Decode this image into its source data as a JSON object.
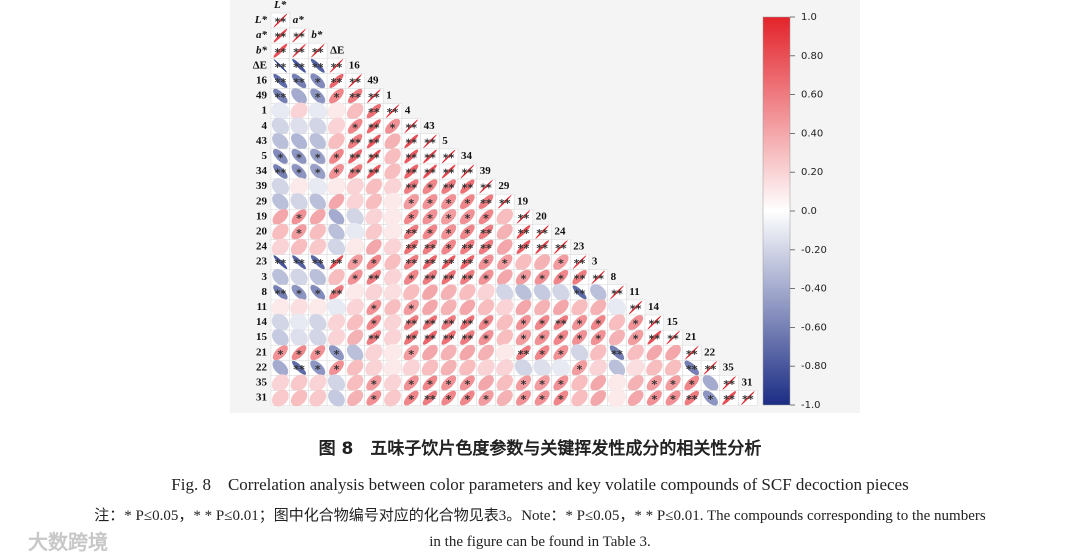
{
  "chart_data": {
    "type": "correlation-ellipse",
    "variables": [
      "L*",
      "a*",
      "b*",
      "ΔE",
      "16",
      "49",
      "1",
      "4",
      "43",
      "5",
      "34",
      "39",
      "29",
      "19",
      "20",
      "24",
      "23",
      "3",
      "8",
      "11",
      "14",
      "15",
      "21",
      "22",
      "35",
      "31"
    ],
    "matrix": [
      [
        1
      ],
      [
        0.85,
        1
      ],
      [
        0.8,
        0.9,
        1
      ],
      [
        -0.95,
        -0.8,
        -0.75,
        1
      ],
      [
        -0.7,
        -0.6,
        -0.55,
        0.7,
        1
      ],
      [
        -0.6,
        -0.4,
        -0.5,
        0.55,
        0.6,
        1
      ],
      [
        -0.1,
        0.2,
        -0.1,
        0.1,
        0.3,
        0.65,
        1
      ],
      [
        -0.2,
        -0.15,
        -0.2,
        0.2,
        0.55,
        0.7,
        0.5,
        1
      ],
      [
        -0.3,
        -0.35,
        -0.3,
        0.3,
        0.6,
        0.75,
        0.35,
        0.8,
        1
      ],
      [
        -0.55,
        -0.5,
        -0.45,
        0.55,
        0.7,
        0.8,
        0.3,
        0.75,
        0.85,
        1
      ],
      [
        -0.6,
        -0.5,
        -0.45,
        0.5,
        0.6,
        0.75,
        0.3,
        0.7,
        0.8,
        0.85,
        1
      ],
      [
        -0.2,
        0.1,
        -0.1,
        0.1,
        0.2,
        0.3,
        0.2,
        0.6,
        0.55,
        0.6,
        0.65,
        1
      ],
      [
        -0.3,
        -0.2,
        -0.3,
        0.4,
        0.2,
        0.3,
        0.1,
        0.45,
        0.5,
        0.5,
        0.55,
        0.6,
        1
      ],
      [
        0.4,
        0.5,
        0.4,
        -0.4,
        -0.2,
        0.2,
        0.1,
        0.55,
        0.5,
        0.45,
        0.5,
        0.55,
        0.3,
        1
      ],
      [
        0.3,
        0.45,
        0.3,
        -0.3,
        -0.1,
        0.25,
        0.1,
        0.6,
        0.55,
        0.5,
        0.55,
        0.6,
        0.35,
        0.8,
        1
      ],
      [
        0.2,
        0.3,
        0.25,
        -0.2,
        0.1,
        0.4,
        0.2,
        0.65,
        0.6,
        0.55,
        0.6,
        0.6,
        0.4,
        0.75,
        0.85,
        1
      ],
      [
        -0.8,
        -0.75,
        -0.7,
        0.8,
        0.45,
        0.55,
        0.3,
        0.6,
        0.7,
        0.75,
        0.7,
        0.5,
        0.45,
        0.3,
        0.35,
        0.45,
        1
      ],
      [
        -0.3,
        -0.2,
        -0.3,
        0.3,
        0.5,
        0.6,
        0.2,
        0.55,
        0.6,
        0.65,
        0.6,
        0.5,
        0.4,
        0.45,
        0.5,
        0.55,
        0.6,
        1
      ],
      [
        -0.6,
        -0.5,
        -0.55,
        0.6,
        0.1,
        0.2,
        0.15,
        0.3,
        0.4,
        0.35,
        0.3,
        0.2,
        -0.2,
        -0.3,
        -0.25,
        -0.2,
        -0.7,
        -0.3,
        1
      ],
      [
        0.1,
        0.15,
        0.1,
        -0.1,
        0.2,
        0.5,
        0.3,
        0.45,
        0.4,
        0.35,
        0.4,
        0.3,
        0.2,
        0.4,
        0.35,
        0.4,
        0.3,
        0.35,
        -0.1,
        1
      ],
      [
        -0.2,
        -0.1,
        -0.2,
        0.2,
        0.3,
        0.55,
        0.2,
        0.6,
        0.65,
        0.6,
        0.65,
        0.55,
        0.3,
        0.5,
        0.55,
        0.6,
        0.5,
        0.55,
        0.3,
        0.5,
        1
      ],
      [
        -0.25,
        -0.15,
        -0.2,
        0.2,
        0.35,
        0.6,
        0.2,
        0.65,
        0.7,
        0.65,
        0.6,
        0.5,
        0.3,
        0.45,
        0.5,
        0.55,
        0.5,
        0.5,
        0.35,
        0.45,
        0.8,
        1
      ],
      [
        0.5,
        0.55,
        0.5,
        -0.5,
        -0.3,
        0.2,
        0.1,
        0.45,
        0.4,
        0.35,
        0.4,
        0.35,
        0.1,
        0.6,
        0.55,
        0.5,
        -0.2,
        0.3,
        -0.6,
        0.3,
        0.4,
        0.4,
        1
      ],
      [
        -0.4,
        -0.7,
        -0.5,
        0.5,
        0.3,
        0.2,
        0.1,
        0.2,
        0.3,
        0.35,
        0.3,
        0.2,
        0.2,
        -0.2,
        -0.15,
        -0.1,
        0.45,
        0.2,
        -0.3,
        0.15,
        0.3,
        0.3,
        -0.6,
        1
      ],
      [
        0.2,
        0.25,
        0.2,
        -0.2,
        0.3,
        0.45,
        0.2,
        0.5,
        0.55,
        0.5,
        0.5,
        0.4,
        0.3,
        0.45,
        0.45,
        0.5,
        0.3,
        0.4,
        0.1,
        0.35,
        0.45,
        0.45,
        0.55,
        -0.4,
        1
      ],
      [
        0.25,
        0.3,
        0.25,
        -0.25,
        0.35,
        0.5,
        0.25,
        0.55,
        0.6,
        0.55,
        0.55,
        0.45,
        0.35,
        0.5,
        0.5,
        0.55,
        0.3,
        0.4,
        0.1,
        0.4,
        0.5,
        0.5,
        0.6,
        -0.5,
        0.8,
        1
      ]
    ],
    "significance": [
      [
        "**"
      ],
      [
        "**",
        "**"
      ],
      [
        "**",
        "**",
        "**"
      ],
      [
        "**",
        "**",
        "**",
        "**"
      ],
      [
        "**",
        "**",
        "*",
        "**",
        "**"
      ],
      [
        "**",
        null,
        "*",
        "*",
        "**",
        "**"
      ],
      [
        null,
        null,
        null,
        null,
        null,
        "**",
        "**"
      ],
      [
        null,
        null,
        null,
        null,
        "*",
        "**",
        "*",
        "**"
      ],
      [
        null,
        null,
        null,
        null,
        "**",
        "**",
        null,
        "**",
        "**"
      ],
      [
        "*",
        "*",
        "*",
        "*",
        "**",
        "**",
        null,
        "**",
        "**",
        "**"
      ],
      [
        "**",
        "*",
        "*",
        "*",
        "**",
        "**",
        null,
        "**",
        "**",
        "**",
        "**"
      ],
      [
        null,
        null,
        null,
        null,
        null,
        null,
        null,
        "**",
        "*",
        "**",
        "**",
        "**"
      ],
      [
        null,
        null,
        null,
        null,
        null,
        null,
        null,
        "*",
        "*",
        "*",
        "*",
        "**",
        "**"
      ],
      [
        null,
        "*",
        null,
        null,
        null,
        null,
        null,
        "*",
        "*",
        "*",
        "*",
        "*",
        null,
        "**"
      ],
      [
        null,
        "*",
        null,
        null,
        null,
        null,
        null,
        "**",
        "*",
        "*",
        "*",
        "**",
        null,
        "**",
        "**"
      ],
      [
        null,
        null,
        null,
        null,
        null,
        null,
        null,
        "**",
        "**",
        "*",
        "**",
        "**",
        null,
        "**",
        "**",
        "**"
      ],
      [
        "**",
        "**",
        "**",
        "**",
        "*",
        "*",
        null,
        "**",
        "**",
        "**",
        "**",
        "*",
        "*",
        null,
        null,
        "*",
        "**"
      ],
      [
        null,
        null,
        null,
        null,
        "*",
        "**",
        null,
        "*",
        "**",
        "**",
        "**",
        "*",
        null,
        "*",
        "*",
        "*",
        "**",
        "**"
      ],
      [
        "**",
        "*",
        "*",
        "**",
        null,
        null,
        null,
        null,
        null,
        null,
        null,
        null,
        null,
        null,
        null,
        null,
        "**",
        null,
        "**"
      ],
      [
        null,
        null,
        null,
        null,
        null,
        "*",
        null,
        "*",
        null,
        null,
        null,
        null,
        null,
        null,
        null,
        null,
        null,
        null,
        null,
        "**"
      ],
      [
        null,
        null,
        null,
        null,
        null,
        "*",
        null,
        "**",
        "**",
        "**",
        "**",
        "*",
        null,
        "*",
        "*",
        "**",
        "*",
        "*",
        null,
        "*",
        "**"
      ],
      [
        null,
        null,
        null,
        null,
        null,
        "**",
        null,
        "**",
        "**",
        "**",
        "**",
        "*",
        null,
        "*",
        "*",
        "*",
        "*",
        "*",
        null,
        "*",
        "**",
        "**"
      ],
      [
        "*",
        "*",
        "*",
        "*",
        null,
        null,
        null,
        "*",
        null,
        null,
        null,
        null,
        null,
        "**",
        "*",
        "*",
        null,
        null,
        "**",
        null,
        null,
        null,
        "**"
      ],
      [
        null,
        "**",
        "*",
        "*",
        null,
        null,
        null,
        null,
        null,
        null,
        null,
        null,
        null,
        null,
        null,
        null,
        "*",
        null,
        null,
        null,
        null,
        null,
        "**",
        "**"
      ],
      [
        null,
        null,
        null,
        null,
        null,
        "*",
        null,
        "*",
        "*",
        "*",
        "*",
        null,
        null,
        "*",
        "*",
        "*",
        null,
        null,
        null,
        null,
        "*",
        "*",
        "*",
        null,
        "**"
      ],
      [
        null,
        null,
        null,
        null,
        null,
        "*",
        null,
        "*",
        "**",
        "*",
        "*",
        "*",
        null,
        "*",
        "*",
        "*",
        null,
        null,
        null,
        null,
        "*",
        "*",
        "**",
        "*",
        "**",
        "**"
      ]
    ],
    "colors": [
      "#1b2c84",
      "#ffffff",
      "#e3232b"
    ],
    "ylim": [
      -1,
      1
    ],
    "yticks": [
      {
        "value": 1,
        "label": "1.0"
      },
      {
        "value": 0.8,
        "label": "0.80"
      },
      {
        "value": 0.6,
        "label": "0.60"
      },
      {
        "value": 0.4,
        "label": "0.40"
      },
      {
        "value": 0.2,
        "label": "0.20"
      },
      {
        "value": 0,
        "label": "0.0"
      },
      {
        "value": -0.2,
        "label": "-0.20"
      },
      {
        "value": -0.4,
        "label": "-0.40"
      },
      {
        "value": -0.6,
        "label": "-0.60"
      },
      {
        "value": -0.8,
        "label": "-0.80"
      },
      {
        "value": -1,
        "label": "-1.0"
      }
    ],
    "title": "图 8　五味子饮片色度参数与关键挥发性成分的相关性分析",
    "subtitle": "Fig. 8　Correlation analysis between color parameters and key volatile compounds of SCF decoction pieces",
    "notes": [
      "注：* P≤0.05，* * P≤0.01；图中化合物编号对应的化合物见表3。Note：* P≤0.05，* * P≤0.01. The compounds corresponding to the numbers",
      "in the figure can be found in Table 3."
    ],
    "watermark": "大数跨境"
  }
}
